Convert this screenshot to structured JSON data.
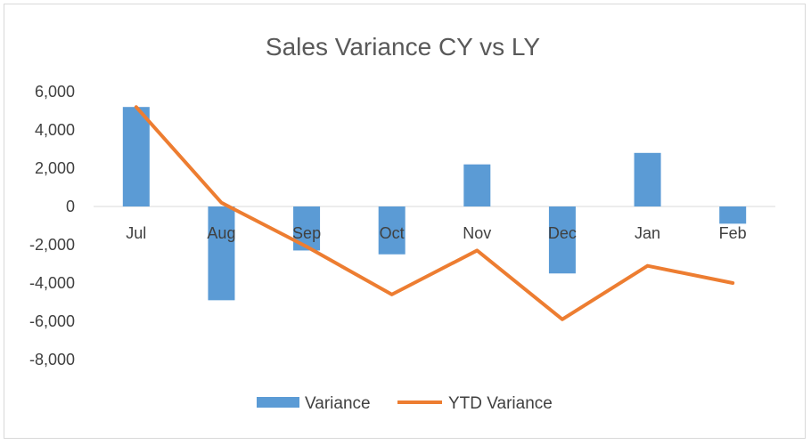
{
  "chart_data": {
    "type": "bar",
    "title": "Sales Variance CY vs LY",
    "categories": [
      "Jul",
      "Aug",
      "Sep",
      "Oct",
      "Nov",
      "Dec",
      "Jan",
      "Feb"
    ],
    "ylim": [
      -8000,
      6000
    ],
    "yticks": [
      6000,
      4000,
      2000,
      0,
      -2000,
      -4000,
      -6000,
      -8000
    ],
    "ytick_labels": [
      "6,000",
      "4,000",
      "2,000",
      "0",
      "-2,000",
      "-4,000",
      "-6,000",
      "-8,000"
    ],
    "grid": false,
    "legend_position": "bottom",
    "series": [
      {
        "name": "Variance",
        "type": "bar",
        "color": "#5b9bd5",
        "values": [
          5200,
          -4900,
          -2300,
          -2500,
          2200,
          -3500,
          2800,
          -900
        ]
      },
      {
        "name": "YTD Variance",
        "type": "line",
        "color": "#ed7d31",
        "values": [
          5200,
          200,
          -2100,
          -4600,
          -2300,
          -5900,
          -3100,
          -4000
        ]
      }
    ]
  }
}
